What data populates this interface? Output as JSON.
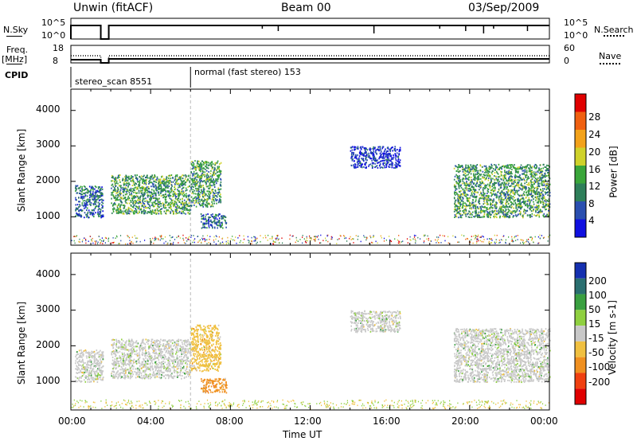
{
  "header": {
    "station": "Unwin (fitACF)",
    "beam": "Beam 00",
    "date": "03/Sep/2009"
  },
  "nsky_panel": {
    "left_label": "N.Sky",
    "right_label": "N.Search",
    "left_ticks": [
      "10^5",
      "10^0"
    ],
    "right_ticks": [
      "10^5",
      "10^0"
    ]
  },
  "freq_panel": {
    "left_label_line1": "Freq.",
    "left_label_line2": "[MHz]",
    "right_label": "Nave",
    "left_ticks": [
      "18",
      "8"
    ],
    "right_ticks": [
      "60",
      "0"
    ]
  },
  "cpid_panel": {
    "label": "CPID",
    "modes": [
      {
        "name": "stereo_scan 8551",
        "start_hour": 0.0,
        "end_hour": 6.0
      },
      {
        "name": "normal (fast stereo) 153",
        "start_hour": 6.0,
        "end_hour": 24.0
      }
    ]
  },
  "chart_data": [
    {
      "type": "heatmap",
      "name": "power",
      "ylabel": "Slant Range [km]",
      "yticks": [
        "1000",
        "2000",
        "3000",
        "4000"
      ],
      "ylim": [
        200,
        4600
      ],
      "xlim": [
        0,
        24
      ],
      "colorbar": {
        "label": "Power [dB]",
        "ticks": [
          "4",
          "8",
          "12",
          "16",
          "20",
          "24",
          "28"
        ],
        "range": [
          0,
          30
        ],
        "colors": [
          "#1010e0",
          "#2a4fb0",
          "#2e7f5a",
          "#3aa63a",
          "#cfd22a",
          "#f3a21a",
          "#f06010",
          "#e00000"
        ]
      },
      "regions": [
        {
          "t0": 0.2,
          "t1": 1.6,
          "r0": 1000,
          "r1": 1900,
          "level": 2
        },
        {
          "t0": 2.0,
          "t1": 6.0,
          "r0": 1100,
          "r1": 2200,
          "level": 3
        },
        {
          "t0": 6.0,
          "t1": 7.5,
          "r0": 1300,
          "r1": 2600,
          "level": 3
        },
        {
          "t0": 6.5,
          "t1": 7.8,
          "r0": 700,
          "r1": 1100,
          "level": 2
        },
        {
          "t0": 14.0,
          "t1": 16.5,
          "r0": 2400,
          "r1": 3000,
          "level": 1
        },
        {
          "t0": 19.2,
          "t1": 24.0,
          "r0": 1000,
          "r1": 2500,
          "level": 3
        }
      ]
    },
    {
      "type": "heatmap",
      "name": "velocity",
      "ylabel": "Slant Range [km]",
      "yticks": [
        "1000",
        "2000",
        "3000",
        "4000"
      ],
      "ylim": [
        200,
        4600
      ],
      "xlim": [
        0,
        24
      ],
      "colorbar": {
        "label": "Velocity [m s-1]",
        "ticks": [
          "200",
          "100",
          "50",
          "15",
          "-15",
          "-50",
          "-100",
          "-200"
        ],
        "colors": [
          "#1530b0",
          "#2a6f70",
          "#3aa040",
          "#8fd040",
          "#c8c8c8",
          "#f0c040",
          "#f09020",
          "#f04010",
          "#e00000"
        ]
      },
      "regions": [
        {
          "t0": 0.2,
          "t1": 1.6,
          "r0": 1000,
          "r1": 1900,
          "level": 4
        },
        {
          "t0": 2.0,
          "t1": 6.0,
          "r0": 1100,
          "r1": 2200,
          "level": 4
        },
        {
          "t0": 6.0,
          "t1": 7.5,
          "r0": 1300,
          "r1": 2600,
          "level": 5
        },
        {
          "t0": 6.5,
          "t1": 7.8,
          "r0": 700,
          "r1": 1100,
          "level": 6
        },
        {
          "t0": 14.0,
          "t1": 16.5,
          "r0": 2400,
          "r1": 3000,
          "level": 4
        },
        {
          "t0": 19.2,
          "t1": 24.0,
          "r0": 1000,
          "r1": 2500,
          "level": 4
        }
      ]
    }
  ],
  "x_axis": {
    "label": "Time UT",
    "ticks": [
      "00:00",
      "04:00",
      "08:00",
      "12:00",
      "16:00",
      "20:00",
      "00:00"
    ]
  }
}
